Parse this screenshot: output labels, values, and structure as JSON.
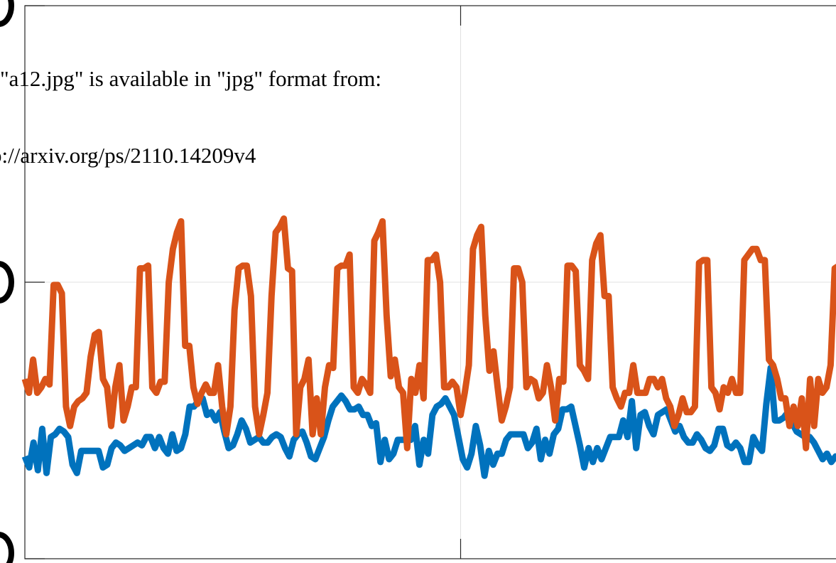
{
  "notice": {
    "line1": "\"a12.jpg\" is available in \"jpg\"  format from:",
    "line2": "p://arxiv.org/ps/2110.14209v4"
  },
  "colors": {
    "series1": "#0072BD",
    "series2": "#D95319",
    "axis": "#262626",
    "grid": "#E0E0E0",
    "background": "#ffffff"
  },
  "chart_data": {
    "type": "line",
    "title": "",
    "xlabel": "",
    "ylabel": "",
    "grid": true,
    "xlim": [
      0,
      200
    ],
    "ylim": [
      -1,
      1
    ],
    "series": [
      {
        "values": [
          -0.63,
          -0.67,
          -0.58,
          -0.68,
          -0.53,
          -0.69,
          -0.56,
          -0.55,
          -0.53,
          -0.54,
          -0.56,
          -0.66,
          -0.69,
          -0.61,
          -0.61,
          -0.61,
          -0.61,
          -0.61,
          -0.67,
          -0.66,
          -0.6,
          -0.58,
          -0.59,
          -0.61,
          -0.6,
          -0.59,
          -0.58,
          -0.59,
          -0.56,
          -0.56,
          -0.6,
          -0.56,
          -0.6,
          -0.62,
          -0.55,
          -0.61,
          -0.6,
          -0.55,
          -0.45,
          -0.45,
          -0.43,
          -0.42,
          -0.48,
          -0.47,
          -0.5,
          -0.47,
          -0.54,
          -0.6,
          -0.59,
          -0.55,
          -0.5,
          -0.53,
          -0.58,
          -0.57,
          -0.56,
          -0.58,
          -0.58,
          -0.56,
          -0.55,
          -0.56,
          -0.6,
          -0.63,
          -0.57,
          -0.55,
          -0.54,
          -0.58,
          -0.63,
          -0.64,
          -0.6,
          -0.56,
          -0.5,
          -0.45,
          -0.43,
          -0.41,
          -0.43,
          -0.46,
          -0.46,
          -0.45,
          -0.48,
          -0.48,
          -0.52,
          -0.51,
          -0.65,
          -0.57,
          -0.64,
          -0.62,
          -0.57,
          -0.57,
          -0.57,
          -0.57,
          -0.52,
          -0.66,
          -0.57,
          -0.62,
          -0.48,
          -0.45,
          -0.44,
          -0.42,
          -0.45,
          -0.48,
          -0.56,
          -0.64,
          -0.67,
          -0.62,
          -0.52,
          -0.59,
          -0.7,
          -0.61,
          -0.66,
          -0.62,
          -0.62,
          -0.57,
          -0.55,
          -0.55,
          -0.55,
          -0.55,
          -0.6,
          -0.58,
          -0.53,
          -0.64,
          -0.57,
          -0.62,
          -0.55,
          -0.53,
          -0.46,
          -0.46,
          -0.45,
          -0.52,
          -0.59,
          -0.67,
          -0.6,
          -0.65,
          -0.6,
          -0.64,
          -0.6,
          -0.56,
          -0.56,
          -0.56,
          -0.5,
          -0.56,
          -0.43,
          -0.6,
          -0.48,
          -0.47,
          -0.52,
          -0.55,
          -0.48,
          -0.47,
          -0.46,
          -0.5,
          -0.54,
          -0.52,
          -0.56,
          -0.58,
          -0.58,
          -0.55,
          -0.57,
          -0.6,
          -0.61,
          -0.59,
          -0.53,
          -0.53,
          -0.59,
          -0.6,
          -0.58,
          -0.6,
          -0.65,
          -0.65,
          -0.56,
          -0.59,
          -0.61,
          -0.44,
          -0.31,
          -0.5,
          -0.5,
          -0.49,
          -0.47,
          -0.51,
          -0.54,
          -0.55,
          -0.56,
          -0.56,
          -0.58,
          -0.61,
          -0.64,
          -0.62,
          -0.65,
          -0.63,
          -0.64,
          -0.61,
          -0.59,
          -0.66,
          -0.59,
          -0.66,
          -0.59,
          -0.59,
          -0.59,
          -0.59,
          -0.59,
          -0.53,
          -0.51,
          -0.49
        ]
      },
      {
        "values": [
          -0.35,
          -0.4,
          -0.28,
          -0.4,
          -0.38,
          -0.35,
          -0.37,
          -0.01,
          -0.01,
          -0.04,
          -0.45,
          -0.52,
          -0.45,
          -0.43,
          -0.42,
          -0.4,
          -0.27,
          -0.19,
          -0.18,
          -0.35,
          -0.38,
          -0.52,
          -0.38,
          -0.3,
          -0.5,
          -0.45,
          -0.38,
          -0.38,
          0.05,
          0.05,
          0.06,
          -0.38,
          -0.4,
          -0.36,
          -0.36,
          0.0,
          0.12,
          0.18,
          0.22,
          -0.23,
          -0.23,
          -0.38,
          -0.44,
          -0.4,
          -0.37,
          -0.4,
          -0.4,
          -0.3,
          -0.45,
          -0.55,
          -0.45,
          -0.1,
          0.05,
          0.06,
          0.06,
          -0.05,
          -0.45,
          -0.55,
          -0.48,
          -0.4,
          -0.05,
          0.18,
          0.2,
          0.23,
          0.05,
          0.04,
          -0.55,
          -0.38,
          -0.35,
          -0.28,
          -0.55,
          -0.42,
          -0.55,
          -0.38,
          -0.3,
          -0.31,
          0.05,
          0.06,
          0.06,
          0.1,
          -0.38,
          -0.4,
          -0.35,
          -0.37,
          -0.4,
          0.15,
          0.18,
          0.22,
          -0.12,
          -0.34,
          -0.28,
          -0.38,
          -0.4,
          -0.6,
          -0.35,
          -0.4,
          -0.3,
          -0.42,
          0.08,
          0.08,
          0.1,
          0.0,
          -0.38,
          -0.38,
          -0.36,
          -0.38,
          -0.48,
          -0.4,
          -0.3,
          0.12,
          0.17,
          0.2,
          -0.12,
          -0.32,
          -0.25,
          -0.38,
          -0.5,
          -0.45,
          -0.38,
          0.05,
          0.05,
          0.0,
          -0.38,
          -0.35,
          -0.36,
          -0.42,
          -0.4,
          -0.3,
          -0.38,
          -0.5,
          -0.35,
          -0.36,
          0.06,
          0.06,
          0.04,
          -0.3,
          -0.32,
          -0.35,
          0.08,
          0.14,
          0.17,
          -0.05,
          -0.05,
          -0.38,
          -0.42,
          -0.45,
          -0.4,
          -0.4,
          -0.3,
          -0.4,
          -0.4,
          -0.4,
          -0.35,
          -0.35,
          -0.38,
          -0.35,
          -0.42,
          -0.45,
          -0.52,
          -0.48,
          -0.42,
          -0.47,
          -0.47,
          -0.45,
          0.07,
          0.08,
          0.08,
          -0.38,
          -0.4,
          -0.46,
          -0.38,
          -0.4,
          -0.35,
          -0.4,
          -0.4,
          0.08,
          0.1,
          0.12,
          0.12,
          0.08,
          0.08,
          -0.28,
          -0.3,
          -0.35,
          -0.42,
          -0.42,
          -0.52,
          -0.45,
          -0.52,
          -0.42,
          -0.6,
          -0.35,
          -0.52,
          -0.35,
          -0.4,
          -0.38,
          -0.3,
          0.05,
          0.06,
          0.06,
          0.06,
          -0.4,
          -0.52,
          -0.48,
          -0.6,
          -0.4,
          -0.4,
          -0.5,
          -0.38,
          -0.3,
          0.05,
          0.2,
          0.25
        ]
      }
    ]
  }
}
